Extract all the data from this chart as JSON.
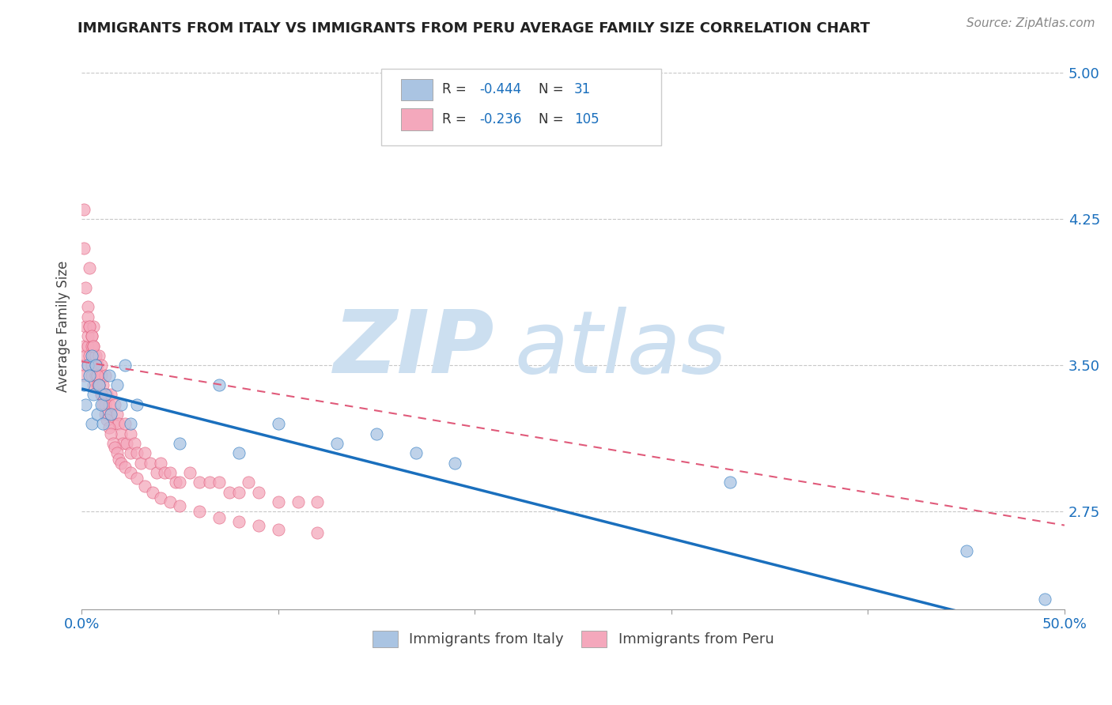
{
  "title": "IMMIGRANTS FROM ITALY VS IMMIGRANTS FROM PERU AVERAGE FAMILY SIZE CORRELATION CHART",
  "source_text": "Source: ZipAtlas.com",
  "ylabel": "Average Family Size",
  "xlim": [
    0.0,
    0.5
  ],
  "ylim": [
    2.25,
    5.15
  ],
  "yticks": [
    2.75,
    3.5,
    4.25,
    5.0
  ],
  "y_tick_labels": [
    "2.75",
    "3.50",
    "4.25",
    "5.00"
  ],
  "bg_color": "#ffffff",
  "grid_color": "#c8c8c8",
  "italy_color": "#aac4e2",
  "peru_color": "#f4a8bc",
  "italy_line_color": "#1a6fbd",
  "peru_line_color": "#e05a7a",
  "italy_line": [
    3.38,
    2.1
  ],
  "peru_line": [
    3.52,
    2.68
  ],
  "italy_scatter_x": [
    0.001,
    0.002,
    0.003,
    0.004,
    0.005,
    0.005,
    0.006,
    0.007,
    0.008,
    0.009,
    0.01,
    0.011,
    0.012,
    0.014,
    0.015,
    0.018,
    0.02,
    0.022,
    0.025,
    0.028,
    0.05,
    0.07,
    0.08,
    0.1,
    0.13,
    0.15,
    0.17,
    0.19,
    0.33,
    0.45,
    0.49
  ],
  "italy_scatter_y": [
    3.4,
    3.3,
    3.5,
    3.45,
    3.55,
    3.2,
    3.35,
    3.5,
    3.25,
    3.4,
    3.3,
    3.2,
    3.35,
    3.45,
    3.25,
    3.4,
    3.3,
    3.5,
    3.2,
    3.3,
    3.1,
    3.4,
    3.05,
    3.2,
    3.1,
    3.15,
    3.05,
    3.0,
    2.9,
    2.55,
    2.3
  ],
  "peru_scatter_x": [
    0.001,
    0.001,
    0.001,
    0.002,
    0.002,
    0.003,
    0.003,
    0.003,
    0.004,
    0.004,
    0.005,
    0.005,
    0.005,
    0.005,
    0.006,
    0.006,
    0.006,
    0.006,
    0.007,
    0.007,
    0.007,
    0.008,
    0.008,
    0.008,
    0.009,
    0.009,
    0.01,
    0.01,
    0.01,
    0.011,
    0.011,
    0.012,
    0.012,
    0.013,
    0.013,
    0.014,
    0.015,
    0.015,
    0.016,
    0.017,
    0.018,
    0.019,
    0.02,
    0.021,
    0.022,
    0.023,
    0.025,
    0.025,
    0.027,
    0.028,
    0.03,
    0.032,
    0.035,
    0.038,
    0.04,
    0.042,
    0.045,
    0.048,
    0.05,
    0.055,
    0.06,
    0.065,
    0.07,
    0.075,
    0.08,
    0.085,
    0.09,
    0.1,
    0.11,
    0.12,
    0.001,
    0.001,
    0.002,
    0.003,
    0.004,
    0.004,
    0.005,
    0.006,
    0.007,
    0.008,
    0.009,
    0.01,
    0.011,
    0.012,
    0.013,
    0.014,
    0.015,
    0.016,
    0.017,
    0.018,
    0.019,
    0.02,
    0.022,
    0.025,
    0.028,
    0.032,
    0.036,
    0.04,
    0.045,
    0.05,
    0.06,
    0.07,
    0.08,
    0.09,
    0.1,
    0.12
  ],
  "peru_scatter_y": [
    3.5,
    3.45,
    3.6,
    3.55,
    3.7,
    3.6,
    3.8,
    3.65,
    3.7,
    3.55,
    3.5,
    3.6,
    3.45,
    3.65,
    3.55,
    3.6,
    3.4,
    3.7,
    3.5,
    3.45,
    3.55,
    3.4,
    3.5,
    3.45,
    3.4,
    3.55,
    3.35,
    3.45,
    3.5,
    3.35,
    3.4,
    3.3,
    3.45,
    3.35,
    3.25,
    3.3,
    3.25,
    3.35,
    3.2,
    3.3,
    3.25,
    3.2,
    3.15,
    3.1,
    3.2,
    3.1,
    3.15,
    3.05,
    3.1,
    3.05,
    3.0,
    3.05,
    3.0,
    2.95,
    3.0,
    2.95,
    2.95,
    2.9,
    2.9,
    2.95,
    2.9,
    2.9,
    2.9,
    2.85,
    2.85,
    2.9,
    2.85,
    2.8,
    2.8,
    2.8,
    4.3,
    4.1,
    3.9,
    3.75,
    4.0,
    3.7,
    3.65,
    3.6,
    3.5,
    3.45,
    3.4,
    3.35,
    3.3,
    3.25,
    3.22,
    3.18,
    3.15,
    3.1,
    3.08,
    3.05,
    3.02,
    3.0,
    2.98,
    2.95,
    2.92,
    2.88,
    2.85,
    2.82,
    2.8,
    2.78,
    2.75,
    2.72,
    2.7,
    2.68,
    2.66,
    2.64
  ]
}
